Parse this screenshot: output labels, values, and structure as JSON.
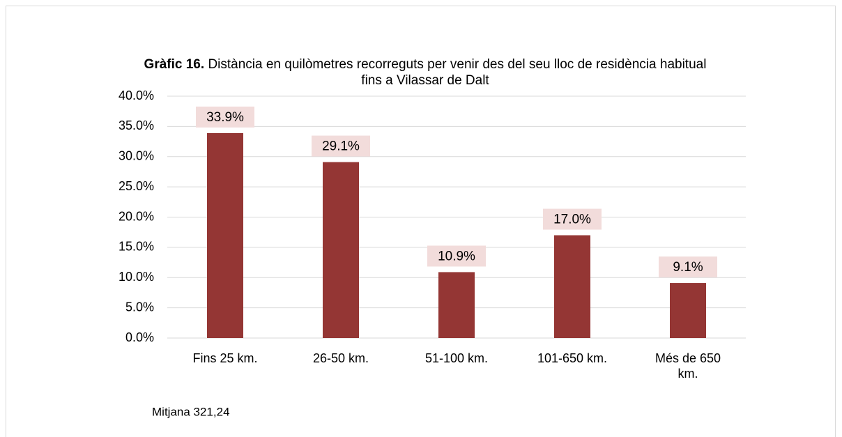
{
  "chart_data": {
    "type": "bar",
    "title_label": "Gràfic 16.",
    "title": [
      "Distància en quilòmetres recorreguts per venir des del seu lloc de residència habitual",
      "fins a Vilassar de Dalt"
    ],
    "categories": [
      "Fins 25 km.",
      "26-50 km.",
      "51-100 km.",
      "101-650 km.",
      "Més de 650 km."
    ],
    "values": [
      33.9,
      29.1,
      10.9,
      17.0,
      9.1
    ],
    "value_labels": [
      "33.9%",
      "29.1%",
      "10.9%",
      "17.0%",
      "9.1%"
    ],
    "color": "#943634",
    "label_background": "#f2dcdb",
    "ylim": [
      0,
      40
    ],
    "yticks": [
      {
        "value": 0,
        "label": "0.0%"
      },
      {
        "value": 5,
        "label": "5.0%"
      },
      {
        "value": 10,
        "label": "10.0%"
      },
      {
        "value": 15,
        "label": "15.0%"
      },
      {
        "value": 20,
        "label": "20.0%"
      },
      {
        "value": 25,
        "label": "25.0%"
      },
      {
        "value": 30,
        "label": "30.0%"
      },
      {
        "value": 35,
        "label": "35.0%"
      },
      {
        "value": 40,
        "label": "40.0%"
      }
    ],
    "grid": true,
    "note": "Mitjana 321,24"
  }
}
